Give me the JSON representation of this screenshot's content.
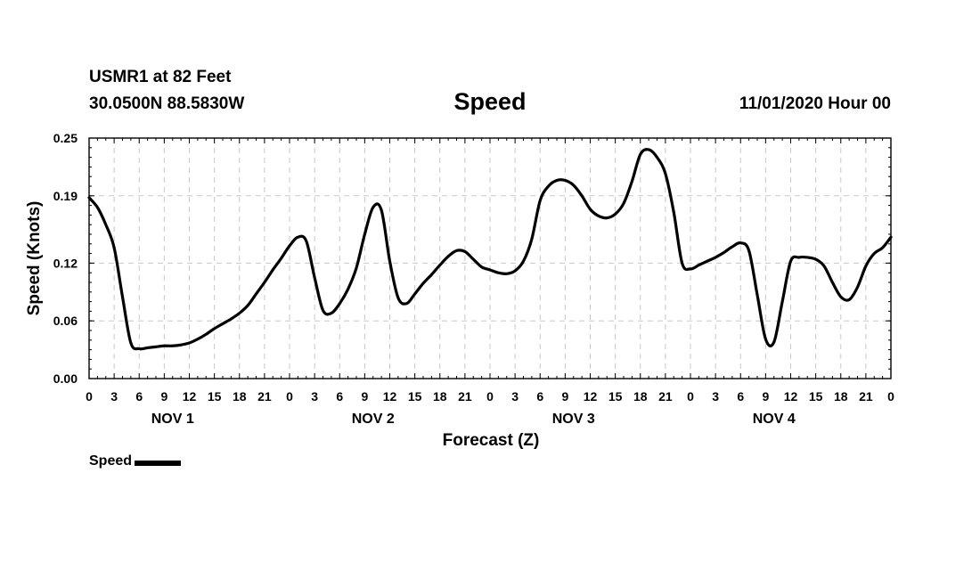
{
  "header": {
    "station": "USMR1 at 82 Feet",
    "coords": "30.0500N 88.5830W",
    "title": "Speed",
    "timestamp": "11/01/2020 Hour 00"
  },
  "chart_data": {
    "type": "line",
    "title": "Speed",
    "xlabel": "Forecast (Z)",
    "ylabel": "Speed (Knots)",
    "x_unit": "hours from 11/01/2020 00Z",
    "xlim": [
      0,
      96
    ],
    "ylim": [
      0.0,
      0.25
    ],
    "yticks": [
      0.0,
      0.06,
      0.12,
      0.19,
      0.25
    ],
    "ytick_labels": [
      "0.00",
      "0.06",
      "0.12",
      "0.19",
      "0.25"
    ],
    "xtick_labels": [
      "0",
      "3",
      "6",
      "9",
      "12",
      "15",
      "18",
      "21",
      "0",
      "3",
      "6",
      "9",
      "12",
      "15",
      "18",
      "21",
      "0",
      "3",
      "6",
      "9",
      "12",
      "15",
      "18",
      "21",
      "0",
      "3",
      "6",
      "9",
      "12",
      "15",
      "18",
      "21",
      "0"
    ],
    "day_labels": [
      "NOV 1",
      "NOV 2",
      "NOV 3",
      "NOV 4"
    ],
    "grid": true,
    "legend": "bottom-left",
    "series": [
      {
        "name": "Speed",
        "color": "#000000",
        "x": [
          0,
          1,
          2,
          3,
          4,
          5,
          6,
          7,
          8,
          9,
          10,
          11,
          12,
          13,
          14,
          15,
          16,
          17,
          18,
          19,
          20,
          21,
          22,
          23,
          24,
          25,
          26,
          27,
          28,
          29,
          30,
          31,
          32,
          33,
          34,
          35,
          36,
          37,
          38,
          39,
          40,
          41,
          42,
          43,
          44,
          45,
          46,
          47,
          48,
          49,
          50,
          51,
          52,
          53,
          54,
          55,
          56,
          57,
          58,
          59,
          60,
          61,
          62,
          63,
          64,
          65,
          66,
          67,
          68,
          69,
          70,
          71,
          72,
          73,
          74,
          75,
          76,
          77,
          78,
          79,
          80,
          81,
          82,
          83,
          84,
          85,
          86,
          87,
          88,
          89,
          90,
          91,
          92,
          93,
          94,
          95,
          96
        ],
        "values": [
          0.188,
          0.178,
          0.16,
          0.136,
          0.085,
          0.037,
          0.031,
          0.032,
          0.033,
          0.034,
          0.034,
          0.035,
          0.037,
          0.041,
          0.046,
          0.052,
          0.057,
          0.062,
          0.068,
          0.076,
          0.088,
          0.1,
          0.113,
          0.125,
          0.138,
          0.147,
          0.143,
          0.105,
          0.071,
          0.068,
          0.078,
          0.093,
          0.115,
          0.15,
          0.178,
          0.175,
          0.122,
          0.084,
          0.078,
          0.088,
          0.099,
          0.108,
          0.118,
          0.127,
          0.133,
          0.132,
          0.124,
          0.116,
          0.113,
          0.11,
          0.109,
          0.112,
          0.122,
          0.145,
          0.185,
          0.2,
          0.206,
          0.206,
          0.201,
          0.19,
          0.176,
          0.169,
          0.167,
          0.171,
          0.182,
          0.205,
          0.233,
          0.238,
          0.23,
          0.213,
          0.173,
          0.12,
          0.114,
          0.118,
          0.122,
          0.126,
          0.131,
          0.137,
          0.141,
          0.133,
          0.087,
          0.041,
          0.038,
          0.08,
          0.122,
          0.126,
          0.126,
          0.124,
          0.117,
          0.1,
          0.085,
          0.082,
          0.095,
          0.117,
          0.13,
          0.136,
          0.147
        ]
      }
    ]
  },
  "legend": {
    "label": "Speed"
  }
}
